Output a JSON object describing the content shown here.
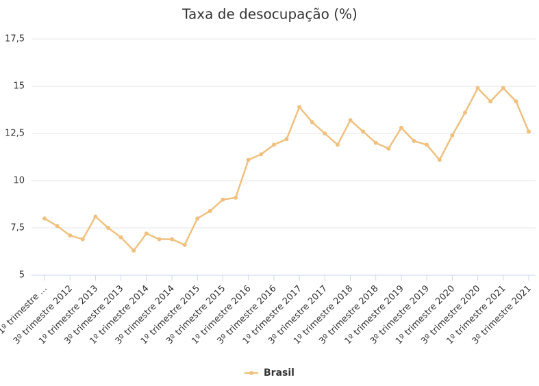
{
  "chart_data": {
    "type": "line",
    "title": "Taxa de desocupação (%)",
    "categories": [
      "1º trimestre ...",
      null,
      "3º trimestre 2012",
      null,
      "1º trimestre 2013",
      null,
      "3º trimestre 2013",
      null,
      "1º trimestre 2014",
      null,
      "3º trimestre 2014",
      null,
      "1º trimestre 2015",
      null,
      "3º trimestre 2015",
      null,
      "1º trimestre 2016",
      null,
      "3º trimestre 2016",
      null,
      "1º trimestre 2017",
      null,
      "3º trimestre 2017",
      null,
      "1º trimestre 2018",
      null,
      "3º trimestre 2018",
      null,
      "1º trimestre 2019",
      null,
      "3º trimestre 2019",
      null,
      "1º trimestre 2020",
      null,
      "3º trimestre 2020",
      null,
      "1º trimestre 2021",
      null,
      "3º trimestre 2021"
    ],
    "series": [
      {
        "name": "Brasil",
        "color": "#f0c07e",
        "values": [
          8.0,
          7.6,
          7.1,
          6.9,
          8.1,
          7.5,
          7.0,
          6.3,
          7.2,
          6.9,
          6.9,
          6.6,
          8.0,
          8.4,
          9.0,
          9.1,
          11.1,
          11.4,
          11.9,
          12.2,
          13.9,
          13.1,
          12.5,
          11.9,
          13.2,
          12.6,
          12.0,
          11.7,
          12.8,
          12.1,
          11.9,
          11.1,
          12.4,
          13.6,
          14.9,
          14.2,
          14.9,
          14.2,
          12.6
        ]
      }
    ],
    "ylim": [
      5,
      17.5
    ],
    "yticks": [
      5,
      {
        "value": 7.5,
        "label": "7,5"
      },
      10,
      {
        "value": 12.5,
        "label": "12,5"
      },
      15,
      {
        "value": 17.5,
        "label": "17,5"
      }
    ],
    "grid": true,
    "legend": "bottom"
  }
}
